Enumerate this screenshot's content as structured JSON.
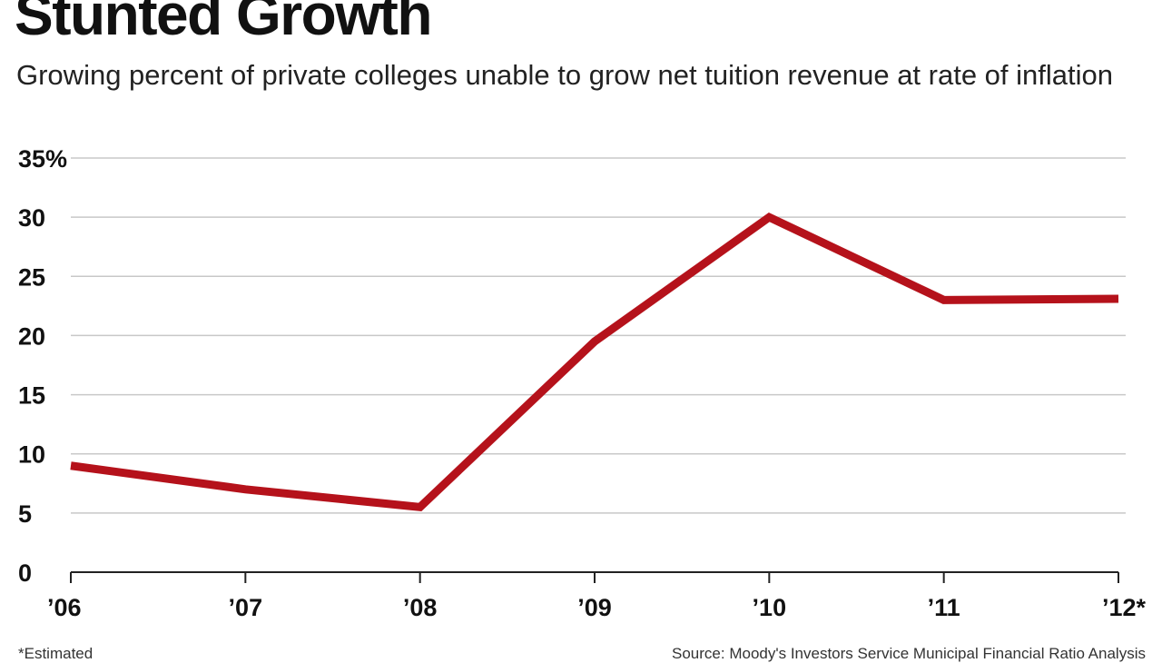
{
  "chart_data": {
    "type": "line",
    "title": "Stunted Growth",
    "subtitle": "Growing percent of private colleges unable to grow net tuition revenue at rate of inflation",
    "categories": [
      "’06",
      "’07",
      "’08",
      "’09",
      "’10",
      "’11",
      "’12*"
    ],
    "series": [
      {
        "values": [
          9,
          7,
          5.5,
          19.5,
          30,
          23,
          23.1
        ]
      }
    ],
    "y_ticks": [
      {
        "value": 0,
        "label": "0"
      },
      {
        "value": 5,
        "label": "5"
      },
      {
        "value": 10,
        "label": "10"
      },
      {
        "value": 15,
        "label": "15"
      },
      {
        "value": 20,
        "label": "20"
      },
      {
        "value": 25,
        "label": "25"
      },
      {
        "value": 30,
        "label": "30"
      },
      {
        "value": 35,
        "label": "35%"
      }
    ],
    "ylim": [
      0,
      35
    ],
    "grid": true,
    "xlabel": "",
    "ylabel": "",
    "footnote": "*Estimated",
    "source": "Source: Moody's Investors Service Municipal Financial Ratio Analysis"
  },
  "colors": {
    "line": "#b5121b",
    "grid": "#c8c8c8",
    "axis": "#222222",
    "text": "#111111"
  }
}
